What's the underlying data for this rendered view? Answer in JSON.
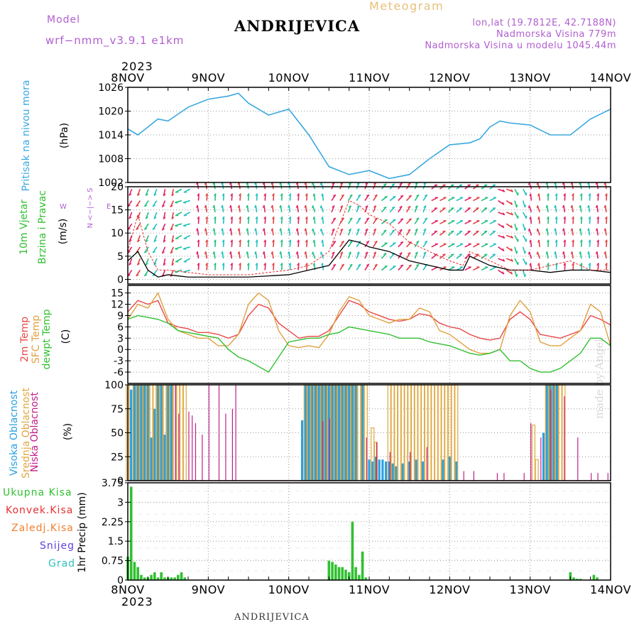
{
  "header": {
    "model_label": "Model",
    "model_value": "wrf−nmm_v3.9.1  e1km",
    "station_title": "ANDRIJEVICA",
    "meteogram_label": "Meteogram",
    "coords": "lon,lat (19.7812E, 42.7188N)",
    "altitude": "Nadmorska Visina 779m",
    "model_altitude": "Nadmorska Visina u modelu 1045.44m",
    "year_top": "2023",
    "year_bottom": "2023",
    "footer_station": "ANDRIJEVICA",
    "credit": "made by Angel"
  },
  "x_axis": {
    "labels": [
      "8NOV",
      "9NOV",
      "10NOV",
      "11NOV",
      "12NOV",
      "13NOV",
      "14NOV"
    ],
    "start": "2023-11-08T00:00",
    "end": "2023-11-14T00:00"
  },
  "panels_text": {
    "pressure": {
      "ylabel": "Pritisak na nivou mora",
      "unit": "(hPa)"
    },
    "wind": {
      "ylabel1": "10m Vjetar",
      "ylabel2": "Brzina i Pravac",
      "unit": "(m/s)",
      "compass": "N\n<\n|\n>\nS",
      "compass_w": "W",
      "compass_e": "E"
    },
    "temp": {
      "ylabel1": "2m Temp",
      "ylabel2": "SFC Temp",
      "ylabel3": "dewpt Temp",
      "unit": "(C)"
    },
    "cloud": {
      "ylabel1": "Visoka Oblacnost",
      "ylabel2": "Srednja Oblacnost",
      "ylabel3": "Niska Oblacnost",
      "unit": "(%)"
    },
    "precip": {
      "ylabel": "1hr Precip (mm)",
      "legend": [
        "Ukupna Kisa",
        "Konvek.Kisa",
        "Zaledj.Kisa",
        "Snijeg",
        "Grad"
      ]
    }
  },
  "colors": {
    "pressure": "#3aa8e0",
    "wind_speed": "#000000",
    "wind_gust": "#e83030",
    "t2m": "#e84848",
    "tsfc": "#e0a040",
    "dewpt": "#30c030",
    "cloud_high": "#2aa0e0",
    "cloud_mid": "#e0a840",
    "cloud_low": "#c0208a",
    "precip": "#30c030",
    "grad": "#30c0c0",
    "snow": "#6040e0",
    "frz": "#f08030",
    "konv": "#e83030"
  },
  "chart_data": [
    {
      "type": "line",
      "name": "pressure",
      "title": "",
      "ylabel": "Pritisak na nivou mora (hPa)",
      "ylim": [
        1002,
        1026
      ],
      "yticks": [
        1002,
        1008,
        1014,
        1020,
        1026
      ],
      "x_hours": [
        0,
        3,
        6,
        9,
        12,
        18,
        24,
        30,
        33,
        36,
        42,
        48,
        54,
        57,
        60,
        66,
        72,
        78,
        84,
        90,
        96,
        102,
        105,
        108,
        111,
        114,
        120,
        126,
        132,
        138,
        144
      ],
      "values": [
        1015.5,
        1014,
        1016,
        1018,
        1017.5,
        1021,
        1023,
        1023.8,
        1024.5,
        1022,
        1019,
        1020.5,
        1014,
        1010,
        1006,
        1004,
        1005,
        1003,
        1004,
        1008,
        1011.5,
        1012,
        1013,
        1016,
        1017.5,
        1017,
        1016.5,
        1014,
        1014,
        1018,
        1020.5
      ],
      "grid": true
    },
    {
      "type": "line",
      "name": "wind",
      "ylabel": "10m Vjetar Brzina i Pravac (m/s)",
      "ylim": [
        -1,
        20
      ],
      "yticks": [
        0,
        5,
        10,
        15,
        20
      ],
      "series": [
        {
          "name": "speed",
          "x_hours": [
            0,
            3,
            6,
            9,
            12,
            18,
            24,
            36,
            48,
            54,
            60,
            66,
            69,
            72,
            78,
            84,
            90,
            96,
            100,
            102,
            108,
            114,
            120,
            126,
            132,
            138,
            144
          ],
          "values": [
            4,
            6,
            2,
            0.5,
            1,
            0.5,
            0.5,
            0.5,
            1,
            2,
            3,
            8.5,
            8,
            7,
            6,
            4,
            3,
            2,
            2,
            5,
            3,
            2,
            2,
            1.5,
            2,
            2,
            1.5
          ]
        },
        {
          "name": "gust",
          "x_hours": [
            0,
            3,
            6,
            9,
            12,
            18,
            24,
            36,
            48,
            54,
            60,
            66,
            69,
            72,
            78,
            84,
            90,
            96,
            100,
            102,
            108,
            114,
            120,
            126,
            132,
            138,
            144
          ],
          "values": [
            6,
            14,
            6,
            2,
            2,
            1.5,
            1,
            1,
            2,
            3,
            6,
            17,
            16,
            14,
            12,
            8,
            6,
            4,
            3,
            6,
            4,
            2,
            2,
            3,
            4,
            2,
            2
          ]
        }
      ],
      "arrows_dir_deg": [
        240,
        240,
        250,
        200,
        90,
        90,
        90,
        90,
        90,
        90,
        90,
        100,
        60,
        60,
        60,
        40,
        50,
        60,
        30,
        30,
        30,
        30,
        330,
        290,
        100,
        90,
        90,
        90,
        90
      ]
    },
    {
      "type": "line",
      "name": "temperature",
      "ylabel": "2m Temp / SFC Temp / dewpt Temp (C)",
      "ylim": [
        -9,
        17
      ],
      "yticks": [
        -6,
        -3,
        0,
        3,
        6,
        9,
        12,
        15
      ],
      "x_hours": [
        0,
        3,
        6,
        9,
        12,
        15,
        18,
        21,
        24,
        27,
        30,
        33,
        36,
        39,
        42,
        45,
        48,
        51,
        54,
        57,
        60,
        63,
        66,
        69,
        72,
        75,
        78,
        81,
        84,
        87,
        90,
        93,
        96,
        99,
        102,
        105,
        108,
        111,
        114,
        117,
        120,
        123,
        126,
        129,
        132,
        135,
        138,
        141,
        144
      ],
      "series": [
        {
          "name": "2m Temp",
          "values": [
            10,
            13,
            12,
            13,
            7,
            6,
            5.5,
            4.5,
            4.5,
            4,
            3,
            4,
            9,
            12,
            11,
            7,
            5,
            3,
            3.5,
            3.5,
            5,
            9,
            13,
            12,
            10,
            9,
            8,
            7.5,
            8,
            9.5,
            9,
            7,
            6,
            5.5,
            4,
            3,
            2.5,
            3,
            8,
            10,
            8,
            4,
            3.5,
            3,
            4,
            5,
            9,
            8,
            6.5
          ]
        },
        {
          "name": "SFC Temp",
          "values": [
            8,
            12,
            11,
            15,
            8,
            5,
            4,
            3,
            3,
            1,
            1,
            4,
            12,
            15,
            13,
            5,
            1,
            0.5,
            1,
            0.5,
            4,
            10,
            14,
            13,
            9,
            8,
            7,
            8,
            8,
            11,
            10,
            5,
            4,
            2,
            0,
            -1,
            -1,
            0,
            9,
            13,
            10,
            2,
            1,
            1,
            3,
            5,
            12,
            10,
            1
          ]
        },
        {
          "name": "dewpt Temp",
          "values": [
            8,
            9,
            8.5,
            8,
            7,
            5,
            4.5,
            4,
            3.5,
            3,
            0,
            -2,
            -3,
            -4.5,
            -6,
            -2,
            2,
            2.5,
            3,
            3,
            4,
            4.5,
            6,
            5.5,
            5,
            4.5,
            4,
            3,
            3,
            3,
            2,
            1.5,
            1,
            0,
            -1,
            -1.5,
            -1,
            0,
            -3,
            -3,
            -5,
            -6,
            -6,
            -5,
            -3,
            -1,
            3,
            3,
            1
          ]
        }
      ]
    },
    {
      "type": "bar",
      "name": "cloud",
      "ylabel": "Visoka / Srednja / Niska Oblacnost (%)",
      "ylim": [
        0,
        100
      ],
      "yticks": [
        0,
        25,
        50,
        75,
        100
      ],
      "series": [
        {
          "name": "Visoka Oblacnost",
          "x_hours": [
            1,
            2,
            3,
            4,
            5,
            6,
            7,
            8,
            9,
            10,
            11,
            12,
            13,
            52,
            53,
            54,
            55,
            56,
            57,
            58,
            59,
            60,
            61,
            62,
            63,
            64,
            65,
            66,
            67,
            68,
            70,
            72,
            73,
            74,
            75,
            76,
            77,
            78,
            79,
            80,
            82,
            84,
            86,
            88,
            94,
            96,
            98,
            124,
            125,
            126,
            127,
            128
          ],
          "values": [
            95,
            100,
            100,
            100,
            100,
            100,
            45,
            75,
            100,
            100,
            48,
            100,
            100,
            63,
            100,
            100,
            100,
            100,
            100,
            100,
            100,
            100,
            100,
            100,
            100,
            100,
            100,
            100,
            100,
            100,
            100,
            22,
            20,
            25,
            22,
            22,
            20,
            20,
            18,
            15,
            18,
            20,
            22,
            20,
            22,
            25,
            20,
            50,
            100,
            100,
            100,
            100
          ]
        },
        {
          "name": "Srednja Oblacnost",
          "x_hours": [
            0,
            2,
            3,
            4,
            5,
            6,
            7,
            8,
            9,
            10,
            11,
            12,
            13,
            14,
            15,
            16,
            17,
            53,
            54,
            55,
            56,
            57,
            58,
            59,
            60,
            61,
            62,
            63,
            64,
            65,
            66,
            67,
            68,
            69,
            70,
            71,
            73,
            74,
            78,
            79,
            80,
            81,
            82,
            83,
            84,
            85,
            86,
            87,
            88,
            89,
            90,
            91,
            92,
            93,
            94,
            95,
            96,
            97,
            98,
            121,
            122,
            125,
            126,
            127,
            128,
            129,
            130
          ],
          "values": [
            100,
            100,
            100,
            100,
            100,
            100,
            100,
            100,
            100,
            100,
            100,
            100,
            100,
            100,
            100,
            100,
            100,
            100,
            100,
            100,
            100,
            100,
            100,
            100,
            100,
            100,
            100,
            100,
            100,
            100,
            100,
            100,
            100,
            100,
            100,
            100,
            55,
            40,
            100,
            100,
            100,
            100,
            100,
            100,
            100,
            100,
            100,
            100,
            100,
            100,
            100,
            100,
            100,
            100,
            100,
            100,
            100,
            100,
            100,
            58,
            22,
            100,
            100,
            100,
            100,
            100,
            100
          ]
        },
        {
          "name": "Niska Oblacnost",
          "x_hours": [
            14,
            15,
            18,
            19,
            20,
            22,
            24,
            27,
            29,
            31,
            32,
            58,
            60,
            71,
            74,
            78,
            84,
            89,
            100,
            103,
            110,
            112,
            118,
            120,
            123,
            126,
            130,
            134,
            138,
            140,
            143
          ],
          "values": [
            100,
            70,
            72,
            68,
            60,
            48,
            100,
            100,
            70,
            75,
            100,
            62,
            65,
            45,
            40,
            30,
            30,
            35,
            10,
            10,
            8,
            8,
            8,
            60,
            45,
            95,
            88,
            45,
            8,
            8,
            8
          ]
        }
      ]
    },
    {
      "type": "bar",
      "name": "precip",
      "ylabel": "1hr Precip (mm)",
      "ylim": [
        0,
        3.75
      ],
      "yticks": [
        0,
        0.75,
        1.5,
        2.25,
        3,
        3.75
      ],
      "series": [
        {
          "name": "Ukupna Kisa",
          "x_hours": [
            0,
            1,
            2,
            3,
            4,
            5,
            6,
            7,
            8,
            9,
            10,
            11,
            12,
            13,
            14,
            15,
            16,
            17,
            60,
            61,
            62,
            63,
            64,
            65,
            66,
            67,
            68,
            69,
            70,
            71,
            132,
            133,
            134,
            135,
            139,
            140
          ],
          "values": [
            0.9,
            3.6,
            0.7,
            0.5,
            0.2,
            0.1,
            0.1,
            0.2,
            0.3,
            0.1,
            0.3,
            0.1,
            0.1,
            0.1,
            0.1,
            0.2,
            0.3,
            0.1,
            0.75,
            0.7,
            0.6,
            0.5,
            0.5,
            0.4,
            0.3,
            2.25,
            0.5,
            0.2,
            1.1,
            0.1,
            0.3,
            0.1,
            0.05,
            0.05,
            0.2,
            0.1
          ]
        }
      ]
    }
  ]
}
